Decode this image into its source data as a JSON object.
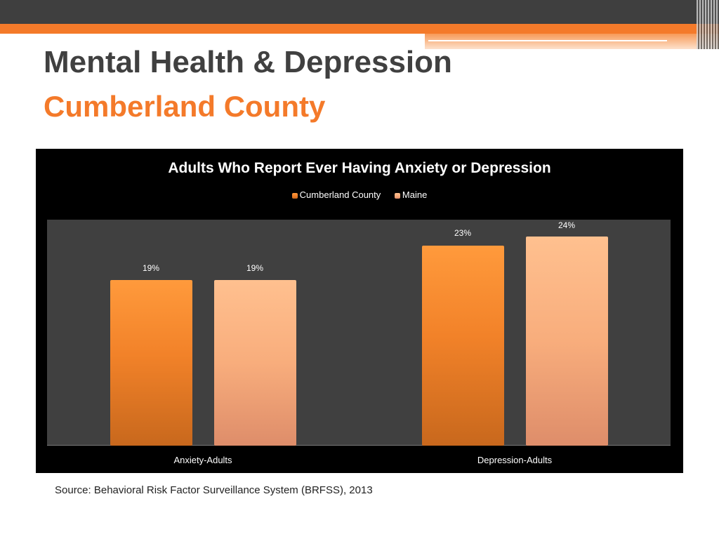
{
  "slide": {
    "title": "Mental Health & Depression",
    "subtitle": "Cumberland County",
    "source": "Source: Behavioral Risk Factor Surveillance System (BRFSS), 2013"
  },
  "chart_data": {
    "type": "bar",
    "title": "Adults Who Report Ever Having Anxiety or Depression",
    "categories": [
      "Anxiety-Adults",
      "Depression-Adults"
    ],
    "series": [
      {
        "name": "Cumberland County",
        "values": [
          19,
          23
        ],
        "labels": [
          "19%",
          "23%"
        ],
        "color": "#f28229"
      },
      {
        "name": "Maine",
        "values": [
          19,
          24
        ],
        "labels": [
          "19%",
          "24%"
        ],
        "color": "#f8ad7c"
      }
    ],
    "xlabel": "",
    "ylabel": "",
    "ylim": [
      0,
      25
    ],
    "grid": false,
    "legend": "top",
    "background": "#000000",
    "plot_background": "#404040"
  }
}
